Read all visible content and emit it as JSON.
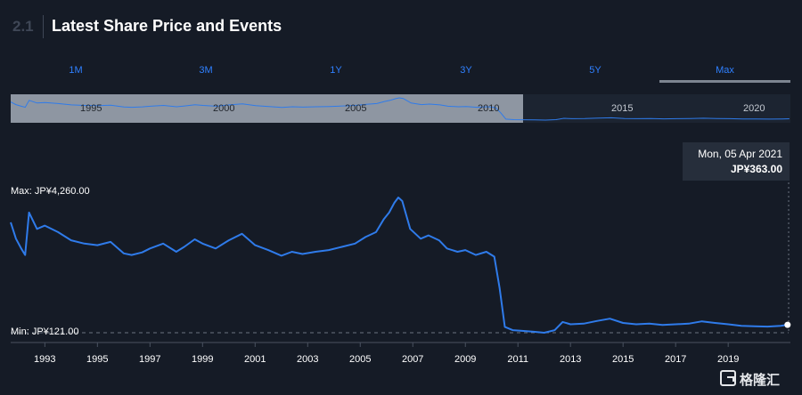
{
  "header": {
    "section_number": "2.1",
    "title": "Latest Share Price and Events"
  },
  "tabs": [
    {
      "label": "1M",
      "active": false
    },
    {
      "label": "3M",
      "active": false
    },
    {
      "label": "1Y",
      "active": false
    },
    {
      "label": "3Y",
      "active": false
    },
    {
      "label": "5Y",
      "active": false
    },
    {
      "label": "Max",
      "active": true
    }
  ],
  "navigator": {
    "year_labels": [
      "1995",
      "2000",
      "2005",
      "2010",
      "2015",
      "2020"
    ]
  },
  "tooltip": {
    "date": "Mon, 05 Apr 2021",
    "price": "JP¥363.00"
  },
  "chart_labels": {
    "max_label": "Max: JP¥4,260.00",
    "min_label": "Min: JP¥121.00"
  },
  "watermark": {
    "text": "格隆汇"
  },
  "colors": {
    "line": "#2f7bea",
    "background": "#151b26",
    "tab_text": "#2f80ff"
  },
  "chart_data": {
    "type": "line",
    "x_tick_labels": [
      "1993",
      "1995",
      "1997",
      "1999",
      "2001",
      "2003",
      "2005",
      "2007",
      "2009",
      "2011",
      "2013",
      "2015",
      "2017",
      "2019"
    ],
    "x_range": [
      1991.7,
      2021.3
    ],
    "y_range": [
      121,
      4260
    ],
    "y_unit": "JP¥",
    "max": 4260.0,
    "min": 121.0,
    "last": 363.0,
    "x": [
      1991.7,
      1991.9,
      1992.1,
      1992.25,
      1992.4,
      1992.7,
      1993.0,
      1993.5,
      1994.0,
      1994.5,
      1995.0,
      1995.5,
      1996.0,
      1996.3,
      1996.7,
      1997.0,
      1997.5,
      1998.0,
      1998.3,
      1998.7,
      1999.0,
      1999.5,
      2000.0,
      2000.5,
      2001.0,
      2001.5,
      2002.0,
      2002.4,
      2002.8,
      2003.3,
      2003.8,
      2004.3,
      2004.8,
      2005.2,
      2005.6,
      2005.9,
      2006.1,
      2006.3,
      2006.45,
      2006.6,
      2006.9,
      2007.3,
      2007.6,
      2008.0,
      2008.3,
      2008.7,
      2009.0,
      2009.4,
      2009.8,
      2010.1,
      2010.3,
      2010.5,
      2010.8,
      2011.1,
      2011.6,
      2012.0,
      2012.4,
      2012.7,
      2013.0,
      2013.5,
      2014.0,
      2014.5,
      2015.0,
      2015.5,
      2016.0,
      2016.5,
      2017.0,
      2017.5,
      2018.0,
      2018.5,
      2019.0,
      2019.5,
      2020.0,
      2020.5,
      2021.0,
      2021.26
    ],
    "y": [
      3500,
      3000,
      2700,
      2500,
      3800,
      3300,
      3400,
      3200,
      2950,
      2850,
      2800,
      2900,
      2550,
      2500,
      2580,
      2700,
      2850,
      2600,
      2750,
      2980,
      2850,
      2700,
      2950,
      3150,
      2800,
      2650,
      2480,
      2600,
      2530,
      2600,
      2650,
      2750,
      2850,
      3050,
      3200,
      3600,
      3800,
      4100,
      4260,
      4150,
      3300,
      3000,
      3100,
      2950,
      2700,
      2600,
      2650,
      2500,
      2600,
      2450,
      1500,
      300,
      200,
      180,
      150,
      121,
      200,
      450,
      380,
      400,
      480,
      550,
      420,
      380,
      400,
      360,
      380,
      400,
      470,
      420,
      380,
      330,
      320,
      310,
      330,
      363
    ]
  }
}
